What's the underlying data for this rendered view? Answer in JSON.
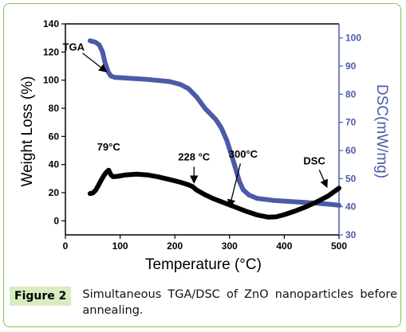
{
  "figure": {
    "label": "Figure 2",
    "caption": "Simultaneous TGA/DSC of ZnO nanoparticles before annealing."
  },
  "chart_data": {
    "type": "line",
    "xlabel": "Temperature (°C)",
    "ylabel_left": "Weight Loss (%)",
    "ylabel_right": "DSC(mW/mg)",
    "xlim": [
      0,
      500
    ],
    "ylim_left": [
      -10,
      140
    ],
    "ylim_right": [
      30,
      105
    ],
    "x_ticks": [
      "0",
      "100",
      "200",
      "300",
      "400",
      "500"
    ],
    "y_left_ticks": [
      "0",
      "20",
      "40",
      "60",
      "80",
      "100",
      "120",
      "140"
    ],
    "y_right_ticks": [
      "30",
      "40",
      "50",
      "60",
      "70",
      "80",
      "90",
      "100"
    ],
    "colors": {
      "tga": "#4c5aa8",
      "dsc": "#000000",
      "axes": "#000000"
    },
    "series": [
      {
        "name": "TGA",
        "axis": "left",
        "x": [
          45,
          55,
          62,
          68,
          72,
          78,
          83,
          90,
          110,
          150,
          190,
          210,
          225,
          240,
          255,
          265,
          275,
          285,
          295,
          305,
          312,
          318,
          325,
          335,
          350,
          380,
          420,
          460,
          490,
          500
        ],
        "y": [
          128,
          127,
          125,
          120,
          113,
          106,
          103,
          102,
          101.5,
          100.5,
          99,
          97,
          94,
          88,
          80,
          76,
          72,
          66,
          57,
          45,
          36,
          28,
          22,
          18.5,
          16,
          14.5,
          13.5,
          12.5,
          11.5,
          11
        ]
      },
      {
        "name": "DSC",
        "axis": "right",
        "x": [
          45,
          50,
          55,
          60,
          65,
          70,
          75,
          79,
          83,
          87,
          95,
          110,
          130,
          150,
          170,
          190,
          210,
          225,
          232,
          240,
          255,
          270,
          290,
          310,
          330,
          350,
          370,
          385,
          400,
          420,
          440,
          460,
          480,
          500
        ],
        "y": [
          44.7,
          44.9,
          45.8,
          47.5,
          49.3,
          51,
          52.3,
          53,
          51.4,
          50.7,
          50.8,
          51.3,
          51.6,
          51.3,
          50.6,
          49.7,
          48.7,
          47.8,
          47.2,
          45.9,
          44.3,
          42.9,
          41.4,
          39.9,
          38.4,
          37.1,
          36.3,
          36.4,
          37.2,
          38.5,
          40,
          41.8,
          43.8,
          46.6
        ]
      }
    ],
    "annotations": [
      {
        "text": "TGA",
        "x": 15,
        "y": 121,
        "arrow_to": [
          75,
          106
        ]
      },
      {
        "text": "79°C",
        "x": 79,
        "y": 50,
        "arrow_to": null
      },
      {
        "text": "228 °C",
        "x": 235,
        "y": 43,
        "arrow_to": [
          235,
          27
        ]
      },
      {
        "text": "300°C",
        "x": 325,
        "y": 45,
        "arrow_to": [
          300,
          10
        ]
      },
      {
        "text": "DSC",
        "x": 455,
        "y": 40,
        "arrow_to": [
          478,
          24
        ]
      }
    ],
    "grid": false,
    "legend": "none"
  }
}
